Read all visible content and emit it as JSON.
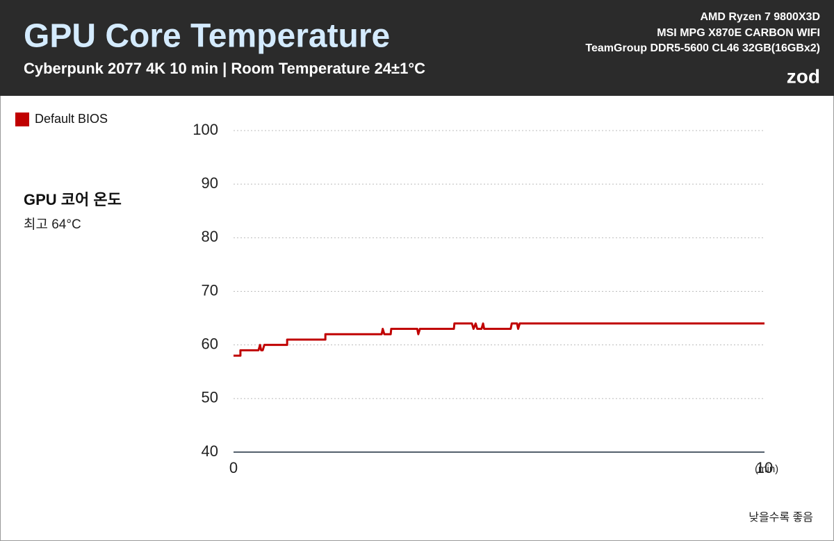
{
  "chart_data": {
    "type": "line",
    "title": "GPU Core Temperature",
    "subtitle": "Cyberpunk 2077 4K 10 min | Room Temperature 24±1°C",
    "specs": [
      "AMD Ryzen 7 9800X3D",
      "MSI MPG X870E CARBON WIFI",
      "TeamGroup DDR5-5600 CL46 32GB(16GBx2)"
    ],
    "brand": "zod",
    "metric_label": "GPU 코어 온도",
    "metric_value": "최고 64°C",
    "footnote": "낮을수록 좋음",
    "x_unit": "(min)",
    "xlim": [
      0,
      10
    ],
    "xticks": [
      0,
      10
    ],
    "ylim": [
      40,
      100
    ],
    "yticks": [
      40,
      50,
      60,
      70,
      80,
      90,
      100
    ],
    "grid": true,
    "legend": "top-left",
    "x": [
      0,
      0.13,
      0.13,
      0.47,
      0.5,
      0.52,
      0.55,
      0.58,
      1.01,
      1.01,
      1.73,
      1.73,
      2.79,
      2.81,
      2.84,
      2.96,
      2.97,
      3.46,
      3.48,
      3.51,
      4.15,
      4.16,
      4.49,
      4.52,
      4.56,
      4.59,
      4.67,
      4.7,
      4.72,
      5.22,
      5.24,
      5.34,
      5.36,
      5.39,
      10
    ],
    "series": [
      {
        "name": "Default BIOS",
        "color": "#c00000",
        "values": [
          58,
          58,
          59,
          59,
          60,
          59,
          59,
          60,
          60,
          61,
          61,
          62,
          62,
          63,
          62,
          62,
          63,
          63,
          62,
          63,
          63,
          64,
          64,
          63,
          64,
          63,
          63,
          64,
          63,
          63,
          64,
          64,
          63,
          64,
          64
        ]
      }
    ]
  }
}
